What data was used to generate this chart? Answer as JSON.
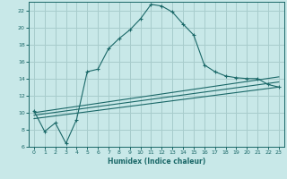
{
  "xlabel": "Humidex (Indice chaleur)",
  "ylabel": "",
  "bg_color": "#c8e8e8",
  "grid_color": "#a8cccc",
  "line_color": "#1a6868",
  "xlim": [
    -0.5,
    23.5
  ],
  "ylim": [
    6,
    23
  ],
  "xticks": [
    0,
    1,
    2,
    3,
    4,
    5,
    6,
    7,
    8,
    9,
    10,
    11,
    12,
    13,
    14,
    15,
    16,
    17,
    18,
    19,
    20,
    21,
    22,
    23
  ],
  "yticks": [
    6,
    8,
    10,
    12,
    14,
    16,
    18,
    20,
    22
  ],
  "curve1_x": [
    0,
    1,
    2,
    3,
    4,
    5,
    6,
    7,
    8,
    9,
    10,
    11,
    12,
    13,
    14,
    15,
    16,
    17,
    18,
    19,
    20,
    21,
    22,
    23
  ],
  "curve1_y": [
    10.2,
    7.8,
    8.8,
    6.4,
    9.2,
    14.8,
    15.1,
    17.5,
    18.7,
    19.7,
    21.0,
    22.7,
    22.5,
    21.8,
    20.4,
    19.1,
    15.6,
    14.8,
    14.3,
    14.1,
    14.0,
    14.0,
    13.3,
    13.0
  ],
  "curve2_x": [
    0,
    23
  ],
  "curve2_y": [
    10.0,
    14.2
  ],
  "curve3_x": [
    0,
    23
  ],
  "curve3_y": [
    9.3,
    13.0
  ],
  "curve4_x": [
    0,
    23
  ],
  "curve4_y": [
    9.7,
    13.6
  ]
}
